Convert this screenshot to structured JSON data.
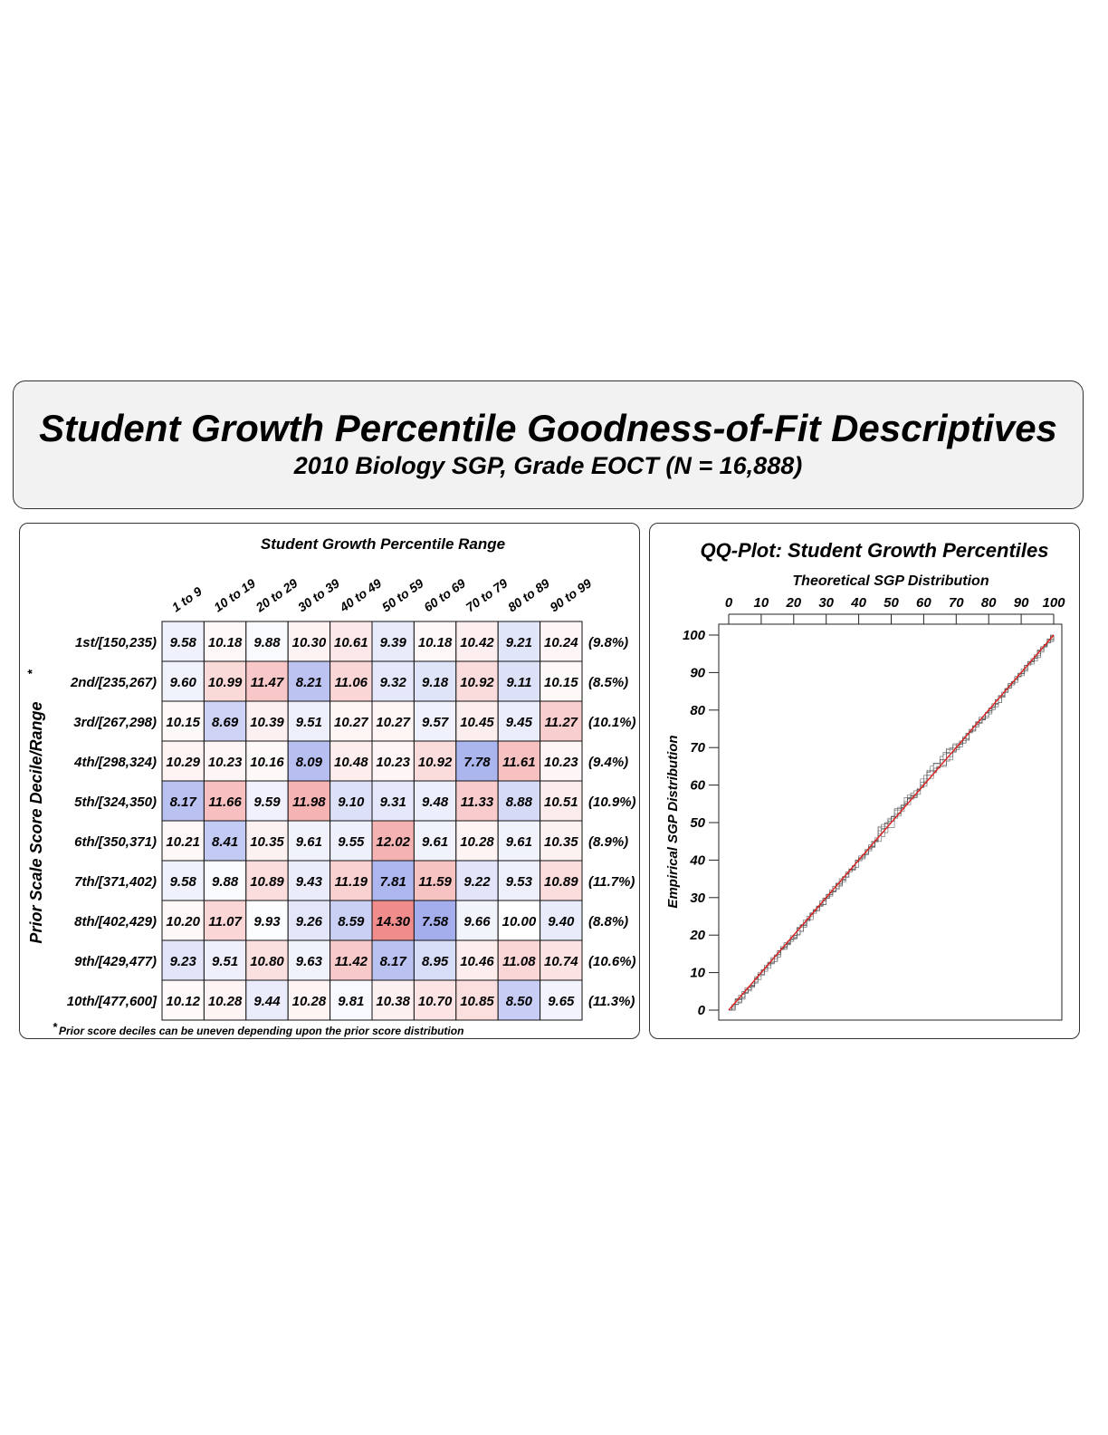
{
  "header": {
    "title": "Student Growth Percentile Goodness-of-Fit Descriptives",
    "subtitle": "2010 Biology SGP, Grade EOCT (N = 16,888)"
  },
  "chart_data": [
    {
      "type": "heatmap",
      "title": "Student Growth Percentile Range",
      "xlabel": "Student Growth Percentile Range",
      "ylabel": "Prior Scale Score Decile/Range",
      "ylabel_marker": "*",
      "columns": [
        "1 to 9",
        "10 to 19",
        "20 to 29",
        "30 to 39",
        "40 to 49",
        "50 to 59",
        "60 to 69",
        "70 to 79",
        "80 to 89",
        "90 to 99"
      ],
      "rows": [
        {
          "label": "1st/[150,235)",
          "values": [
            "9.58",
            "10.18",
            "9.88",
            "10.30",
            "10.61",
            "9.39",
            "10.18",
            "10.42",
            "9.21",
            "10.24"
          ],
          "percent": "(9.8%)"
        },
        {
          "label": "2nd/[235,267)",
          "values": [
            "9.60",
            "10.99",
            "11.47",
            "8.21",
            "11.06",
            "9.32",
            "9.18",
            "10.92",
            "9.11",
            "10.15"
          ],
          "percent": "(8.5%)"
        },
        {
          "label": "3rd/[267,298)",
          "values": [
            "10.15",
            "8.69",
            "10.39",
            "9.51",
            "10.27",
            "10.27",
            "9.57",
            "10.45",
            "9.45",
            "11.27"
          ],
          "percent": "(10.1%)"
        },
        {
          "label": "4th/[298,324)",
          "values": [
            "10.29",
            "10.23",
            "10.16",
            "8.09",
            "10.48",
            "10.23",
            "10.92",
            "7.78",
            "11.61",
            "10.23"
          ],
          "percent": "(9.4%)"
        },
        {
          "label": "5th/[324,350)",
          "values": [
            "8.17",
            "11.66",
            "9.59",
            "11.98",
            "9.10",
            "9.31",
            "9.48",
            "11.33",
            "8.88",
            "10.51"
          ],
          "percent": "(10.9%)"
        },
        {
          "label": "6th/[350,371)",
          "values": [
            "10.21",
            "8.41",
            "10.35",
            "9.61",
            "9.55",
            "12.02",
            "9.61",
            "10.28",
            "9.61",
            "10.35"
          ],
          "percent": "(8.9%)"
        },
        {
          "label": "7th/[371,402)",
          "values": [
            "9.58",
            "9.88",
            "10.89",
            "9.43",
            "11.19",
            "7.81",
            "11.59",
            "9.22",
            "9.53",
            "10.89"
          ],
          "percent": "(11.7%)"
        },
        {
          "label": "8th/[402,429)",
          "values": [
            "10.20",
            "11.07",
            "9.93",
            "9.26",
            "8.59",
            "14.30",
            "7.58",
            "9.66",
            "10.00",
            "9.40"
          ],
          "percent": "(8.8%)"
        },
        {
          "label": "9th/[429,477)",
          "values": [
            "9.23",
            "9.51",
            "10.80",
            "9.63",
            "11.42",
            "8.17",
            "8.95",
            "10.46",
            "11.08",
            "10.74"
          ],
          "percent": "(10.6%)"
        },
        {
          "label": "10th/[477,600]",
          "values": [
            "10.12",
            "10.28",
            "9.44",
            "10.28",
            "9.81",
            "10.38",
            "10.70",
            "10.85",
            "8.50",
            "9.65"
          ],
          "percent": "(11.3%)"
        }
      ],
      "reference_value": 10,
      "colors": {
        "low": "#8e9be8",
        "high": "#f08c8c"
      },
      "footnote_marker": "*",
      "footnote": "Prior score deciles can be uneven depending upon the prior score distribution"
    },
    {
      "type": "line",
      "title": "QQ-Plot: Student Growth Percentiles",
      "xlabel": "Theoretical SGP Distribution",
      "ylabel": "Empirical SGP Distribution",
      "xlim": [
        0,
        100
      ],
      "ylim": [
        0,
        100
      ],
      "xticks": [
        0,
        10,
        20,
        30,
        40,
        50,
        60,
        70,
        80,
        90,
        100
      ],
      "yticks": [
        0,
        10,
        20,
        30,
        40,
        50,
        60,
        70,
        80,
        90,
        100
      ],
      "series": [
        {
          "x": [
            0,
            100
          ],
          "y": [
            0,
            100
          ],
          "color": "#e02020"
        }
      ],
      "step_color": "#555555"
    }
  ]
}
